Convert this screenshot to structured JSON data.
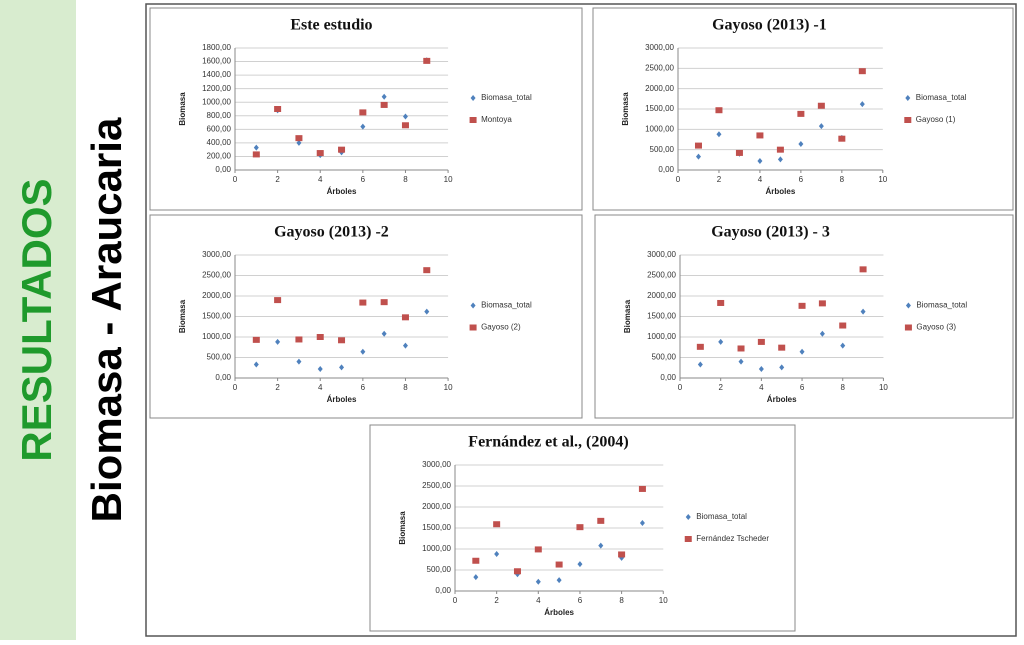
{
  "slide": {
    "section": "RESULTADOS",
    "title": "Biomasa - Araucaria"
  },
  "chart_data": [
    {
      "type": "scatter",
      "title": "Este estudio",
      "x_label": "Árboles",
      "y_label": "Biomasa",
      "xlim": [
        0,
        10
      ],
      "xticks": [
        0,
        2,
        4,
        6,
        8,
        10
      ],
      "ylim": [
        0,
        1800
      ],
      "yticks": [
        {
          "value": 0,
          "label": "0,00"
        },
        {
          "value": 200,
          "label": "200,00"
        },
        {
          "value": 400,
          "label": "400,00"
        },
        {
          "value": 600,
          "label": "600,00"
        },
        {
          "value": 800,
          "label": "800,00"
        },
        {
          "value": 1000,
          "label": "1000,00"
        },
        {
          "value": 1200,
          "label": "1200,00"
        },
        {
          "value": 1400,
          "label": "1400,00"
        },
        {
          "value": 1600,
          "label": "1600,00"
        },
        {
          "value": 1800,
          "label": "1800,00"
        }
      ],
      "grid": true,
      "series": [
        {
          "name": "Biomasa_total",
          "color": "#4f81bd",
          "x": [
            1,
            2,
            3,
            4,
            5,
            6,
            7,
            8,
            9
          ],
          "values": [
            330,
            880,
            400,
            220,
            260,
            640,
            1080,
            790,
            1620
          ]
        },
        {
          "name": "Montoya",
          "color": "#c0504d",
          "x": [
            1,
            2,
            3,
            4,
            5,
            6,
            7,
            8,
            9
          ],
          "values": [
            230,
            900,
            470,
            250,
            300,
            850,
            960,
            660,
            1610
          ]
        }
      ]
    },
    {
      "type": "scatter",
      "title": "Gayoso (2013) -1",
      "x_label": "Árboles",
      "y_label": "Biomasa",
      "xlim": [
        0,
        10
      ],
      "xticks": [
        0,
        2,
        4,
        6,
        8,
        10
      ],
      "ylim": [
        0,
        3000
      ],
      "yticks": [
        {
          "value": 0,
          "label": "0,00"
        },
        {
          "value": 500,
          "label": "500,00"
        },
        {
          "value": 1000,
          "label": "1000,00"
        },
        {
          "value": 1500,
          "label": "1500,00"
        },
        {
          "value": 2000,
          "label": "2000,00"
        },
        {
          "value": 2500,
          "label": "2500,00"
        },
        {
          "value": 3000,
          "label": "3000,00"
        }
      ],
      "grid": true,
      "series": [
        {
          "name": "Biomasa_total",
          "color": "#4f81bd",
          "x": [
            1,
            2,
            3,
            4,
            5,
            6,
            7,
            8,
            9
          ],
          "values": [
            330,
            880,
            400,
            220,
            260,
            640,
            1080,
            790,
            1620
          ]
        },
        {
          "name": "Gayoso (1)",
          "color": "#c0504d",
          "x": [
            1,
            2,
            3,
            4,
            5,
            6,
            7,
            8,
            9
          ],
          "values": [
            600,
            1470,
            420,
            850,
            500,
            1380,
            1580,
            770,
            2430
          ]
        }
      ]
    },
    {
      "type": "scatter",
      "title": "Gayoso (2013) -2",
      "x_label": "Árboles",
      "y_label": "Biomasa",
      "xlim": [
        0,
        10
      ],
      "xticks": [
        0,
        2,
        4,
        6,
        8,
        10
      ],
      "ylim": [
        0,
        3000
      ],
      "yticks": [
        {
          "value": 0,
          "label": "0,00"
        },
        {
          "value": 500,
          "label": "500,00"
        },
        {
          "value": 1000,
          "label": "1000,00"
        },
        {
          "value": 1500,
          "label": "1500,00"
        },
        {
          "value": 2000,
          "label": "2000,00"
        },
        {
          "value": 2500,
          "label": "2500,00"
        },
        {
          "value": 3000,
          "label": "3000,00"
        }
      ],
      "grid": true,
      "series": [
        {
          "name": "Biomasa_total",
          "color": "#4f81bd",
          "x": [
            1,
            2,
            3,
            4,
            5,
            6,
            7,
            8,
            9
          ],
          "values": [
            330,
            880,
            400,
            220,
            260,
            640,
            1080,
            790,
            1620
          ]
        },
        {
          "name": "Gayoso (2)",
          "color": "#c0504d",
          "x": [
            1,
            2,
            3,
            4,
            5,
            6,
            7,
            8,
            9
          ],
          "values": [
            930,
            1900,
            940,
            1000,
            920,
            1840,
            1850,
            1480,
            2630
          ]
        }
      ]
    },
    {
      "type": "scatter",
      "title": "Gayoso (2013) - 3",
      "x_label": "Árboles",
      "y_label": "Biomasa",
      "xlim": [
        0,
        10
      ],
      "xticks": [
        0,
        2,
        4,
        6,
        8,
        10
      ],
      "ylim": [
        0,
        3000
      ],
      "yticks": [
        {
          "value": 0,
          "label": "0,00"
        },
        {
          "value": 500,
          "label": "500,00"
        },
        {
          "value": 1000,
          "label": "1000,00"
        },
        {
          "value": 1500,
          "label": "1500,00"
        },
        {
          "value": 2000,
          "label": "2000,00"
        },
        {
          "value": 2500,
          "label": "2500,00"
        },
        {
          "value": 3000,
          "label": "3000,00"
        }
      ],
      "grid": true,
      "series": [
        {
          "name": "Biomasa_total",
          "color": "#4f81bd",
          "x": [
            1,
            2,
            3,
            4,
            5,
            6,
            7,
            8,
            9
          ],
          "values": [
            330,
            880,
            400,
            220,
            260,
            640,
            1080,
            790,
            1620
          ]
        },
        {
          "name": "Gayoso (3)",
          "color": "#c0504d",
          "x": [
            1,
            2,
            3,
            4,
            5,
            6,
            7,
            8,
            9
          ],
          "values": [
            760,
            1830,
            720,
            880,
            740,
            1760,
            1820,
            1280,
            2650
          ]
        }
      ]
    },
    {
      "type": "scatter",
      "title": "Fernández et al., (2004)",
      "x_label": "Árboles",
      "y_label": "Biomasa",
      "xlim": [
        0,
        10
      ],
      "xticks": [
        0,
        2,
        4,
        6,
        8,
        10
      ],
      "ylim": [
        0,
        3000
      ],
      "yticks": [
        {
          "value": 0,
          "label": "0,00"
        },
        {
          "value": 500,
          "label": "500,00"
        },
        {
          "value": 1000,
          "label": "1000,00"
        },
        {
          "value": 1500,
          "label": "1500,00"
        },
        {
          "value": 2000,
          "label": "2000,00"
        },
        {
          "value": 2500,
          "label": "2500,00"
        },
        {
          "value": 3000,
          "label": "3000,00"
        }
      ],
      "grid": true,
      "series": [
        {
          "name": "Biomasa_total",
          "color": "#4f81bd",
          "x": [
            1,
            2,
            3,
            4,
            5,
            6,
            7,
            8,
            9
          ],
          "values": [
            330,
            880,
            400,
            220,
            260,
            640,
            1080,
            790,
            1620
          ]
        },
        {
          "name": "Fernández Tscheder",
          "color": "#c0504d",
          "x": [
            1,
            2,
            3,
            4,
            5,
            6,
            7,
            8,
            9
          ],
          "values": [
            720,
            1590,
            470,
            990,
            630,
            1520,
            1670,
            870,
            2430
          ]
        }
      ]
    }
  ]
}
